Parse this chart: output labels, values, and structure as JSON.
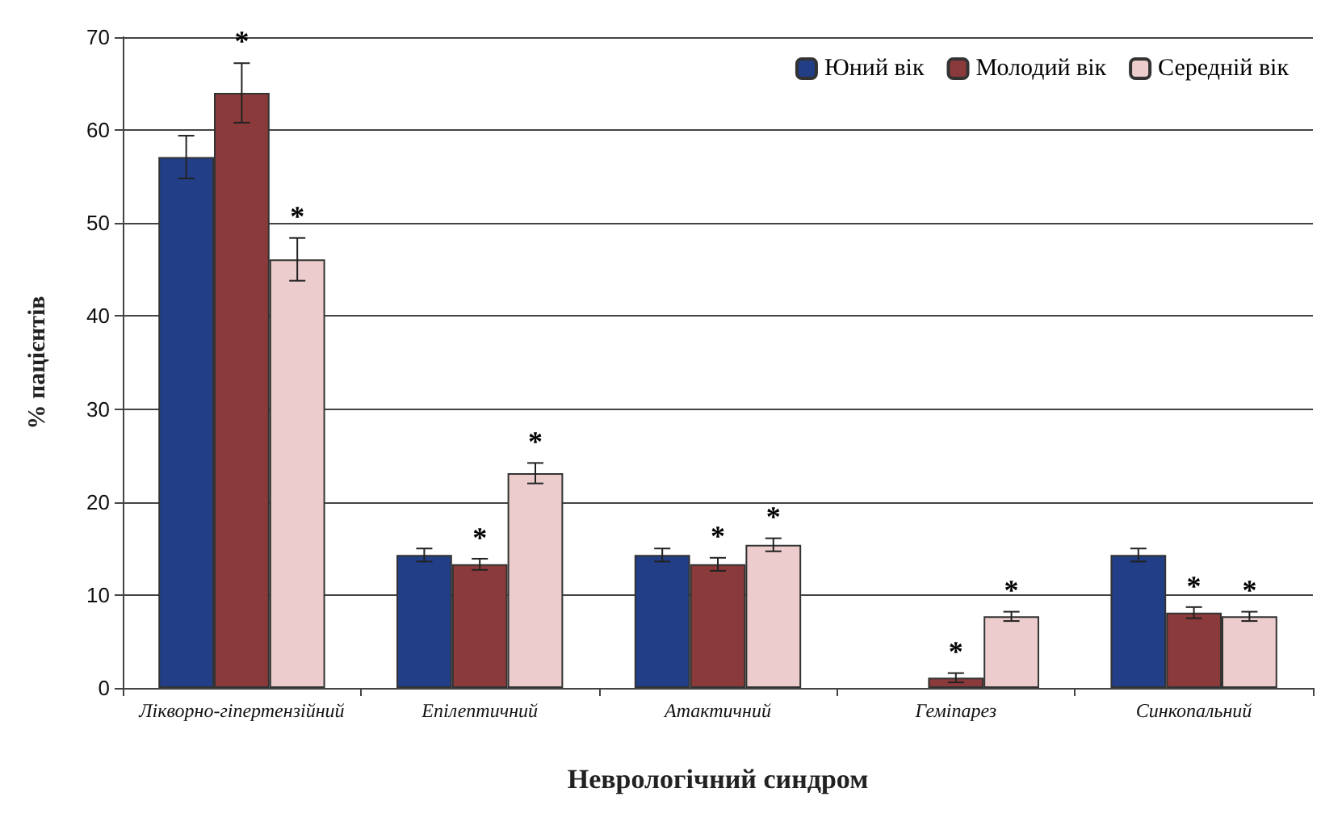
{
  "chart_data": {
    "type": "bar",
    "xlabel": "Неврологічний синдром",
    "ylabel": "% пацієнтів",
    "categories": [
      "Лікворно-гіпертензійний",
      "Епілептичний",
      "Атактичний",
      "Геміпарез",
      "Синкопальний"
    ],
    "series": [
      {
        "name": "Юний вік",
        "color": "#213e86",
        "values": [
          57.1,
          14.3,
          14.3,
          null,
          14.3
        ],
        "errors": [
          2.3,
          0.7,
          0.7,
          null,
          0.7
        ],
        "value_labels": [
          null,
          null,
          null,
          null,
          null
        ]
      },
      {
        "name": "Молодий вік",
        "color": "#8a3a3a",
        "values": [
          64.0,
          13.3,
          13.3,
          1.1,
          8.1
        ],
        "errors": [
          3.2,
          0.6,
          0.7,
          0.5,
          0.6
        ],
        "value_labels": [
          "*",
          "*",
          "*",
          "*",
          "*"
        ]
      },
      {
        "name": "Середній вік",
        "color": "#eccccc",
        "values": [
          46.1,
          23.1,
          15.4,
          7.7,
          7.7
        ],
        "errors": [
          2.3,
          1.1,
          0.7,
          0.5,
          0.5
        ],
        "value_labels": [
          "*",
          "*",
          "*",
          "*",
          "*"
        ]
      }
    ],
    "ylim": [
      0,
      70
    ],
    "yticks": [
      0,
      10,
      20,
      30,
      40,
      50,
      60,
      70
    ],
    "grid": "y",
    "legend": "top right"
  }
}
